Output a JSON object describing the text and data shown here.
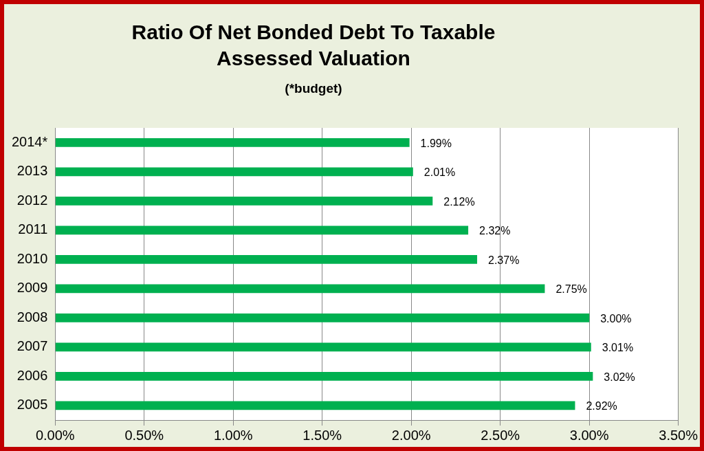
{
  "chart_data": {
    "type": "bar",
    "orientation": "horizontal",
    "title": "Ratio Of Net Bonded Debt To Taxable Assessed Valuation",
    "subtitle": "(*budget)",
    "categories": [
      "2014*",
      "2013",
      "2012",
      "2011",
      "2010",
      "2009",
      "2008",
      "2007",
      "2006",
      "2005"
    ],
    "values": [
      1.99,
      2.01,
      2.12,
      2.32,
      2.37,
      2.75,
      3.0,
      3.01,
      3.02,
      2.92
    ],
    "value_labels": [
      "1.99%",
      "2.01%",
      "2.12%",
      "2.32%",
      "2.37%",
      "2.75%",
      "3.00%",
      "3.01%",
      "3.02%",
      "2.92%"
    ],
    "color": "#00b050",
    "xlim": [
      0,
      3.5
    ],
    "xticks": [
      {
        "value": 0,
        "label": "0.00%"
      },
      {
        "value": 0.5,
        "label": "0.50%"
      },
      {
        "value": 1,
        "label": "1.00%"
      },
      {
        "value": 1.5,
        "label": "1.50%"
      },
      {
        "value": 2,
        "label": "2.00%"
      },
      {
        "value": 2.5,
        "label": "2.50%"
      },
      {
        "value": 3,
        "label": "3.00%"
      },
      {
        "value": 3.5,
        "label": "3.50%"
      }
    ],
    "grid": "x",
    "legend": false
  }
}
